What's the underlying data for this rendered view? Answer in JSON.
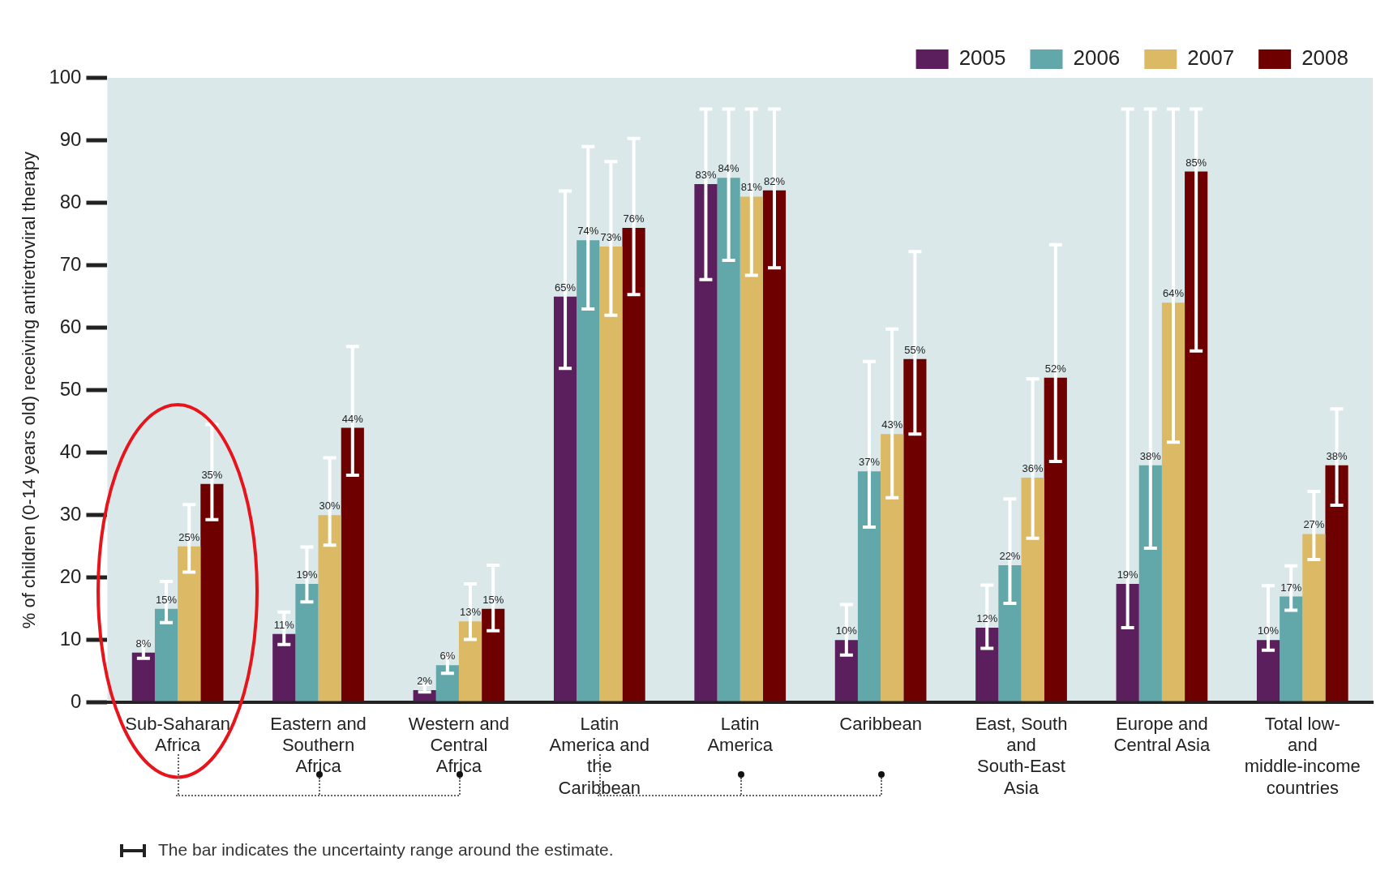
{
  "chart_data": {
    "type": "bar",
    "ylabel": "% of children (0-14 years old) receiving antiretroviral therapy",
    "categories": [
      "Sub-Saharan Africa",
      "Eastern and Southern Africa",
      "Western and Central Africa",
      "Latin America and the Caribbean",
      "Latin America",
      "Caribbean",
      "East, South and South-East Asia",
      "Europe and Central Asia",
      "Total low- and middle-income countries"
    ],
    "series": [
      {
        "name": "2005",
        "color": "#5c1f5e",
        "values": [
          8,
          11,
          2,
          65,
          83,
          10,
          12,
          19,
          10
        ],
        "value_labels": [
          "8%",
          "11%",
          "2%",
          "65%",
          "83%",
          "10%",
          "12%",
          "19%",
          "10%"
        ],
        "errors": [
          [
            7.1,
            9.6
          ],
          [
            9.3,
            14.5
          ],
          [
            1.7,
            2.9
          ],
          [
            53.5,
            81.9
          ],
          [
            67.7,
            95
          ],
          [
            7.6,
            15.7
          ],
          [
            8.7,
            18.8
          ],
          [
            12,
            95
          ],
          [
            8.4,
            18.7
          ]
        ]
      },
      {
        "name": "2006",
        "color": "#62a8ab",
        "values": [
          15,
          19,
          6,
          74,
          84,
          37,
          22,
          38,
          17
        ],
        "value_labels": [
          "15%",
          "19%",
          "6%",
          "74%",
          "84%",
          "37%",
          "22%",
          "38%",
          "17%"
        ],
        "errors": [
          [
            12.8,
            19.4
          ],
          [
            16.1,
            24.9
          ],
          [
            4.7,
            7.6
          ],
          [
            63,
            89
          ],
          [
            70.8,
            95
          ],
          [
            28.1,
            54.6
          ],
          [
            15.9,
            32.6
          ],
          [
            24.7,
            95
          ],
          [
            14.8,
            21.9
          ]
        ]
      },
      {
        "name": "2007",
        "color": "#dbb965",
        "values": [
          25,
          30,
          13,
          73,
          81,
          43,
          36,
          64,
          27
        ],
        "value_labels": [
          "25%",
          "30%",
          "13%",
          "73%",
          "81%",
          "43%",
          "36%",
          "64%",
          "27%"
        ],
        "errors": [
          [
            20.9,
            31.7
          ],
          [
            25.2,
            39.2
          ],
          [
            10.1,
            19
          ],
          [
            62,
            86.6
          ],
          [
            68.4,
            95
          ],
          [
            32.8,
            59.8
          ],
          [
            26.3,
            51.8
          ],
          [
            41.7,
            95
          ],
          [
            22.9,
            33.8
          ]
        ]
      },
      {
        "name": "2008",
        "color": "#6e0000",
        "values": [
          35,
          44,
          15,
          76,
          82,
          55,
          52,
          85,
          38
        ],
        "value_labels": [
          "35%",
          "44%",
          "15%",
          "76%",
          "82%",
          "55%",
          "52%",
          "85%",
          "38%"
        ],
        "errors": [
          [
            29.3,
            44.5
          ],
          [
            36.4,
            57
          ],
          [
            11.5,
            22
          ],
          [
            65.3,
            90.3
          ],
          [
            69.6,
            95
          ],
          [
            43,
            72.2
          ],
          [
            38.6,
            73.3
          ],
          [
            56.3,
            95
          ],
          [
            31.6,
            47
          ]
        ]
      }
    ],
    "ylim": [
      0,
      100
    ],
    "yticks": [
      0,
      10,
      20,
      30,
      40,
      50,
      60,
      70,
      80,
      90,
      100
    ],
    "grid": false,
    "legend": "top right",
    "annotations": [
      "The bar indicates the uncertainty range around the estimate."
    ]
  }
}
